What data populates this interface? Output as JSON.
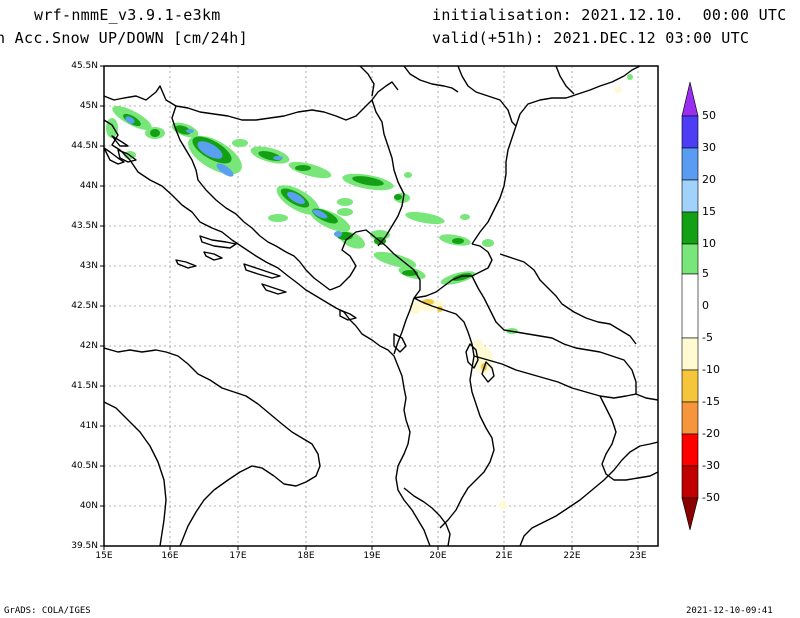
{
  "header": {
    "model": "wrf-nmmE_v3.9.1-e3km",
    "field": "n Acc.Snow UP/DOWN [cm/24h]",
    "init": "initialisation: 2021.12.10.  00:00 UTC",
    "valid": "valid(+51h): 2021.DEC.12 03:00 UTC"
  },
  "map": {
    "lat_labels": [
      "45.5N",
      "45N",
      "44.5N",
      "44N",
      "43.5N",
      "43N",
      "42.5N",
      "42N",
      "41.5N",
      "41N",
      "40.5N",
      "40N",
      "39.5N"
    ],
    "lon_labels": [
      "15E",
      "16E",
      "17E",
      "18E",
      "19E",
      "20E",
      "21E",
      "22E",
      "23E"
    ]
  },
  "colorbar": {
    "labels": [
      "50",
      "30",
      "20",
      "15",
      "10",
      "5",
      "0",
      "-5",
      "-10",
      "-15",
      "-20",
      "-30",
      "-50"
    ],
    "colors": [
      "#6a1ef0",
      "#4d5cf5",
      "#5aa0f0",
      "#a0d2fa",
      "#14a014",
      "#78e678",
      "#ffffff",
      "#fffad2",
      "#f0c846",
      "#f5963c",
      "#ff0000",
      "#c80000",
      "#a00000"
    ]
  },
  "footer": {
    "left": "GrADS: COLA/IGES",
    "right": "2021-12-10-09:41"
  }
}
